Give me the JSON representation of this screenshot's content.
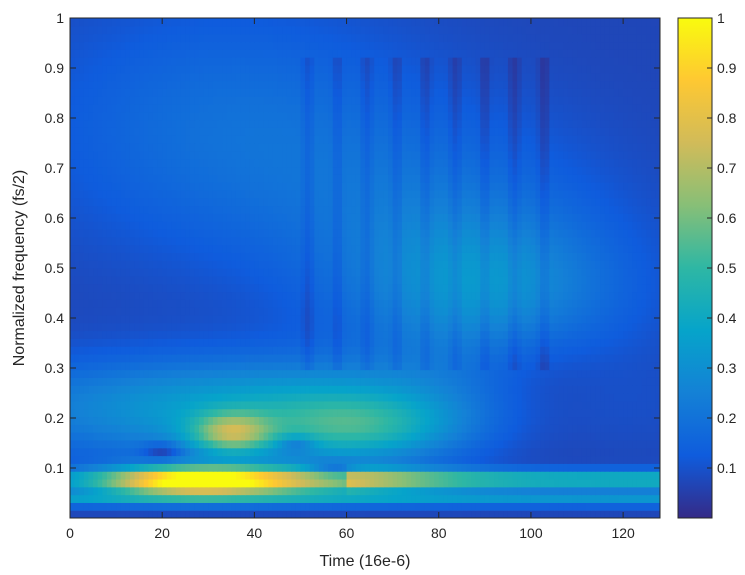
{
  "chart_data": {
    "type": "heatmap",
    "title": "",
    "xlabel": "Time (16e-6)",
    "ylabel": "Normalized frequency (fs/2)",
    "xlim": [
      0,
      128
    ],
    "ylim": [
      0,
      1
    ],
    "x_ticks": [
      "0",
      "20",
      "40",
      "60",
      "80",
      "100",
      "120"
    ],
    "y_ticks": [
      "0.1",
      "0.2",
      "0.3",
      "0.4",
      "0.5",
      "0.6",
      "0.7",
      "0.8",
      "0.9",
      "1"
    ],
    "grid": false,
    "colorbar": {
      "colormap": "parula",
      "range": [
        0,
        1
      ],
      "ticks": [
        "0.1",
        "0.2",
        "0.3",
        "0.4",
        "0.5",
        "0.6",
        "0.7",
        "0.8",
        "0.9",
        "1"
      ]
    },
    "features": [
      {
        "x": 25,
        "y": 0.075,
        "value": 0.82
      },
      {
        "x": 35,
        "y": 0.17,
        "value": 0.78
      },
      {
        "x": 60,
        "y": 0.08,
        "value": 0.55
      },
      {
        "x": 90,
        "y": 0.45,
        "value": 0.3
      },
      {
        "x": 35,
        "y": 0.75,
        "value": 0.18
      }
    ],
    "colors": {
      "colormap_stops": [
        "#352A87",
        "#0F5CDD",
        "#1481D6",
        "#06A4CA",
        "#2EB7A4",
        "#87BF77",
        "#D1BB59",
        "#FEC832",
        "#F9FB0E"
      ]
    }
  }
}
